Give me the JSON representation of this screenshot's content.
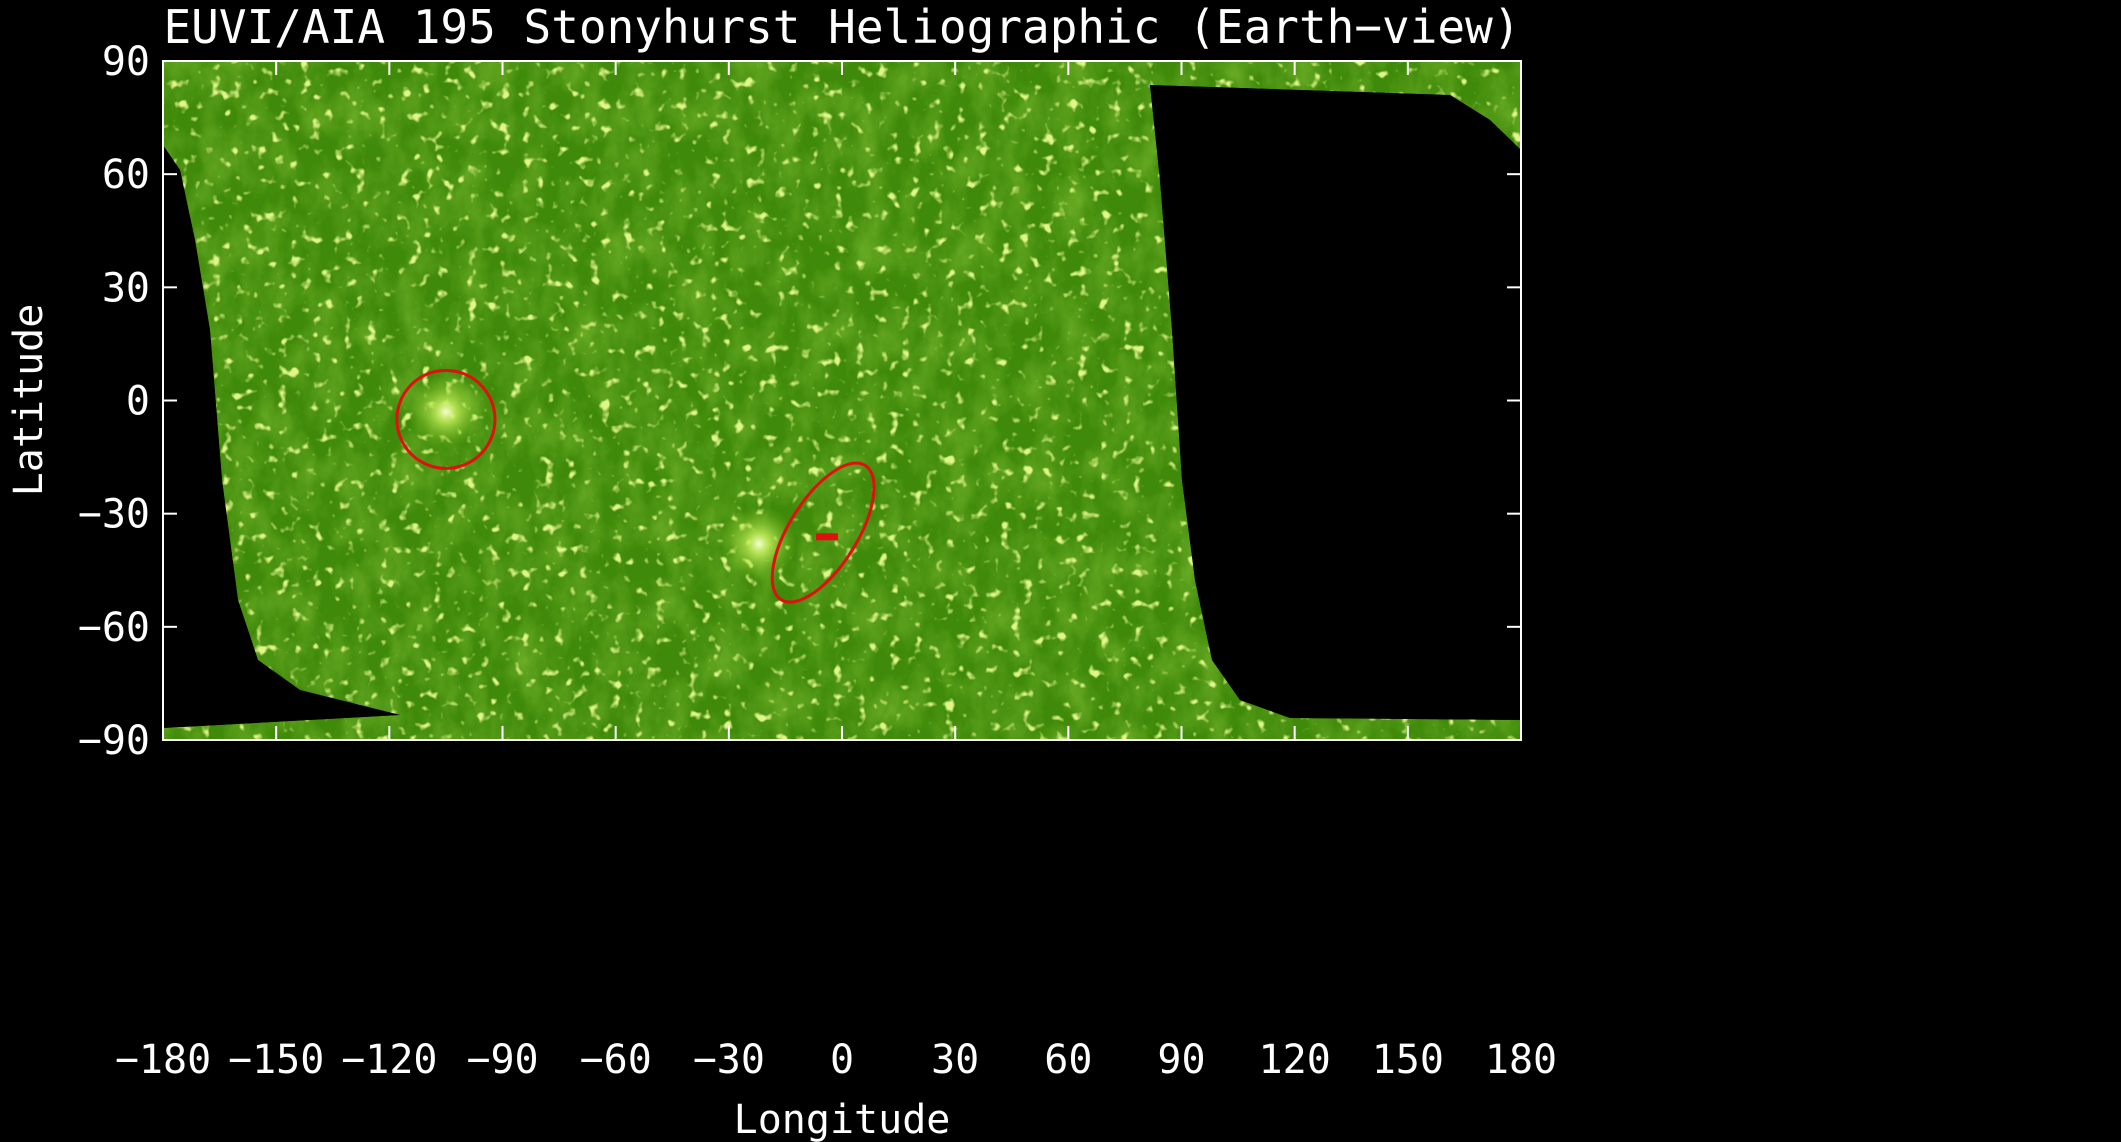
{
  "figure": {
    "title": "EUVI/AIA 195 Stonyhurst Heliographic (Earth−view)",
    "xlabel": "Longitude",
    "ylabel": "Latitude",
    "background_color": "#000000",
    "axis_color": "#ffffff",
    "map_color": "#3f8a0a",
    "map_highlight_color": "#a8d840",
    "marker_color": "#e01010"
  },
  "axes": {
    "xlim": [
      -180,
      180
    ],
    "ylim": [
      -90,
      90
    ],
    "x_ticks": [
      {
        "value": -180,
        "label": "−180"
      },
      {
        "value": -150,
        "label": "−150"
      },
      {
        "value": -120,
        "label": "−120"
      },
      {
        "value": -90,
        "label": "−90"
      },
      {
        "value": -60,
        "label": "−60"
      },
      {
        "value": -30,
        "label": "−30"
      },
      {
        "value": 0,
        "label": "0"
      },
      {
        "value": 30,
        "label": "30"
      },
      {
        "value": 60,
        "label": "60"
      },
      {
        "value": 90,
        "label": "90"
      },
      {
        "value": 120,
        "label": "120"
      },
      {
        "value": 150,
        "label": "150"
      },
      {
        "value": 180,
        "label": "180"
      }
    ],
    "y_ticks": [
      {
        "value": 90,
        "label": "90"
      },
      {
        "value": 60,
        "label": "60"
      },
      {
        "value": 30,
        "label": "30"
      },
      {
        "value": 0,
        "label": "0"
      },
      {
        "value": -30,
        "label": "−30"
      },
      {
        "value": -60,
        "label": "−60"
      },
      {
        "value": -90,
        "label": "−90"
      }
    ]
  },
  "features": {
    "bright_regions": [
      {
        "lon": -105,
        "lat": -3
      },
      {
        "lon": -22,
        "lat": -38
      }
    ],
    "circle": {
      "lon": -105,
      "lat": -5,
      "r_lon": 13,
      "r_lat": 13
    },
    "ellipse": {
      "lon": -5,
      "lat": -35,
      "r_lon": 9,
      "r_lat": 21,
      "rotation": 32
    },
    "marker": {
      "lon": -4,
      "lat": -36
    }
  }
}
